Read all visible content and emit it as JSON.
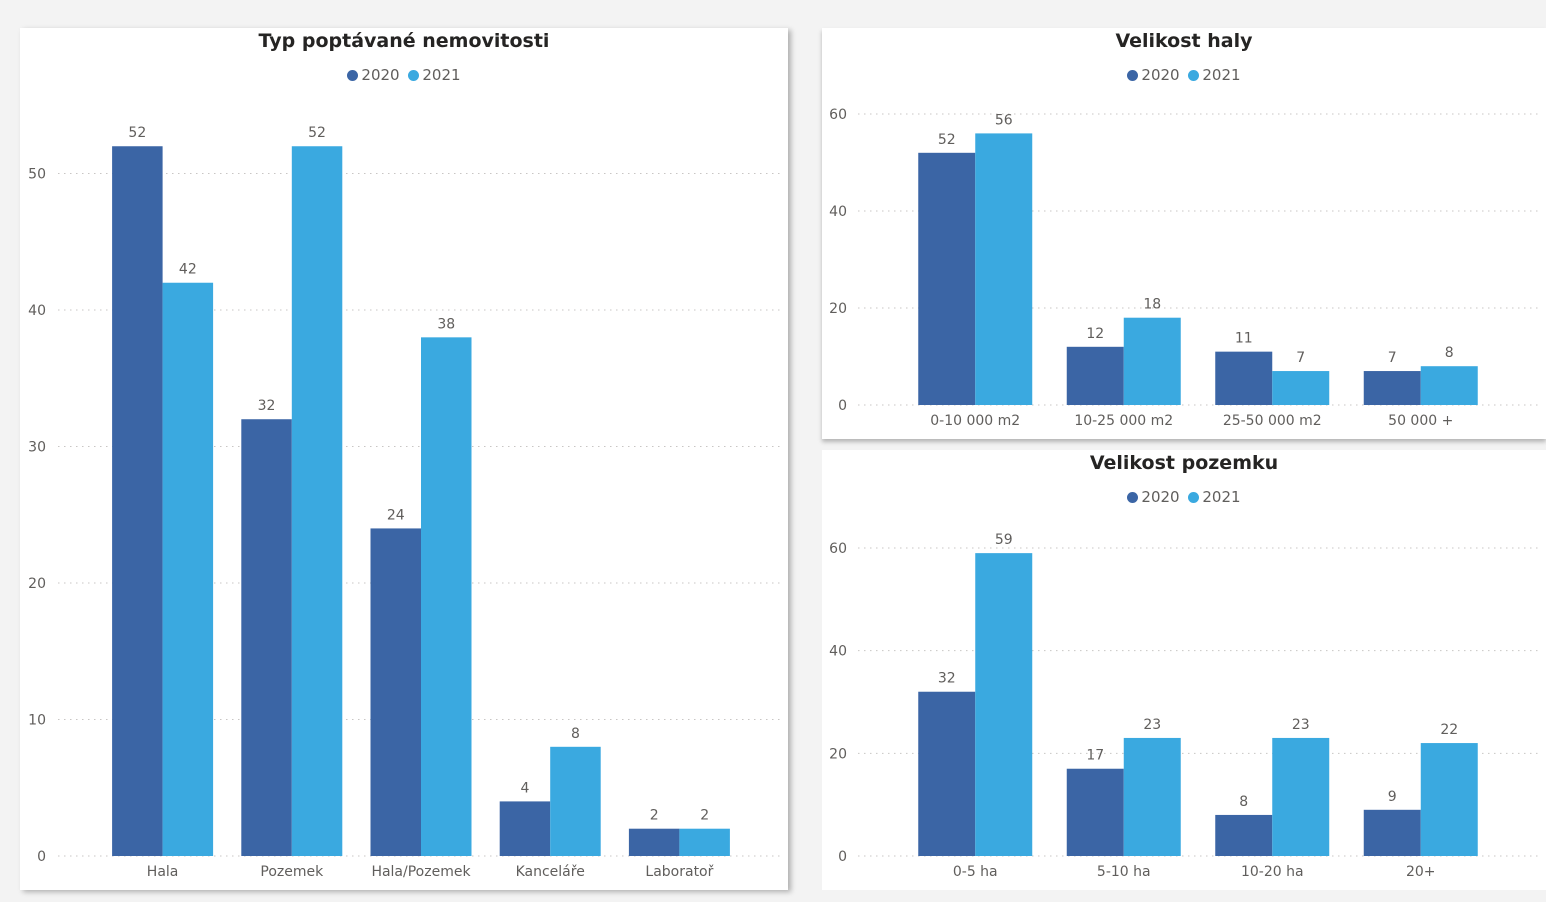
{
  "colors": {
    "2020": "#3b65a5",
    "2021": "#3aa9e0"
  },
  "chart_data": [
    {
      "id": "typ",
      "type": "bar",
      "title": "Typ poptávané nemovitosti",
      "categories": [
        "Hala",
        "Pozemek",
        "Hala/Pozemek",
        "Kanceláře",
        "Laboratoř"
      ],
      "series": [
        {
          "name": "2020",
          "values": [
            52,
            32,
            24,
            4,
            2
          ]
        },
        {
          "name": "2021",
          "values": [
            42,
            52,
            38,
            8,
            2
          ]
        }
      ],
      "ylim": [
        0,
        57
      ],
      "yticks": [
        0,
        10,
        20,
        30,
        40,
        50
      ],
      "xlabel": "",
      "ylabel": "",
      "grid": true,
      "legend": "top-center"
    },
    {
      "id": "haly",
      "type": "bar",
      "title": "Velikost haly",
      "categories": [
        "0-10 000 m2",
        "10-25 000 m2",
        "25-50 000 m2",
        "50 000 +"
      ],
      "series": [
        {
          "name": "2020",
          "values": [
            52,
            12,
            11,
            7
          ]
        },
        {
          "name": "2021",
          "values": [
            56,
            18,
            7,
            8
          ]
        }
      ],
      "ylim": [
        0,
        60
      ],
      "yticks": [
        0,
        20,
        40,
        60
      ],
      "xlabel": "",
      "ylabel": "",
      "grid": true,
      "legend": "top-center"
    },
    {
      "id": "pozemku",
      "type": "bar",
      "title": "Velikost pozemku",
      "categories": [
        "0-5 ha",
        "5-10 ha",
        "10-20 ha",
        "20+"
      ],
      "series": [
        {
          "name": "2020",
          "values": [
            32,
            17,
            8,
            9
          ]
        },
        {
          "name": "2021",
          "values": [
            59,
            23,
            23,
            22
          ]
        }
      ],
      "ylim": [
        0,
        60
      ],
      "yticks": [
        0,
        20,
        40,
        60
      ],
      "xlabel": "",
      "ylabel": "",
      "grid": true,
      "legend": "top-center"
    }
  ]
}
